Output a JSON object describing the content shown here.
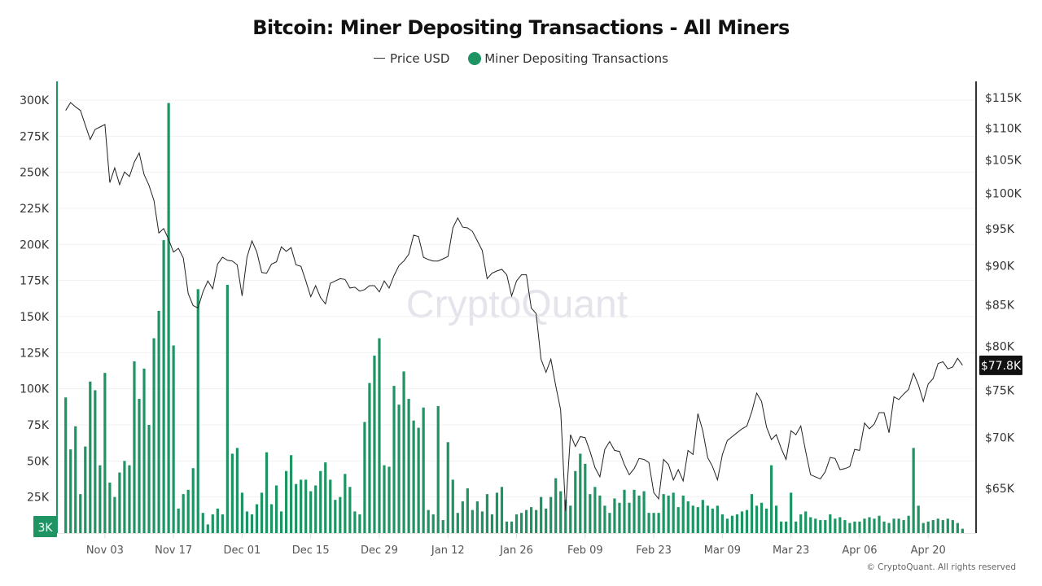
{
  "chart_data": {
    "type": "bar+line",
    "title": "Bitcoin: Miner Depositing Transactions - All Miners",
    "legend": {
      "placement": "top-center",
      "items": [
        "Price USD",
        "Miner Depositing Transactions"
      ]
    },
    "x": [
      "Oct 26",
      "Oct 27",
      "Oct 28",
      "Oct 29",
      "Oct 30",
      "Oct 31",
      "Nov 01",
      "Nov 02",
      "Nov 03",
      "Nov 04",
      "Nov 05",
      "Nov 06",
      "Nov 07",
      "Nov 08",
      "Nov 09",
      "Nov 10",
      "Nov 11",
      "Nov 12",
      "Nov 13",
      "Nov 14",
      "Nov 15",
      "Nov 16",
      "Nov 17",
      "Nov 18",
      "Nov 19",
      "Nov 20",
      "Nov 21",
      "Nov 22",
      "Nov 23",
      "Nov 24",
      "Nov 25",
      "Nov 26",
      "Nov 27",
      "Nov 28",
      "Nov 29",
      "Nov 30",
      "Dec 01",
      "Dec 02",
      "Dec 03",
      "Dec 04",
      "Dec 05",
      "Dec 06",
      "Dec 07",
      "Dec 08",
      "Dec 09",
      "Dec 10",
      "Dec 11",
      "Dec 12",
      "Dec 13",
      "Dec 14",
      "Dec 15",
      "Dec 16",
      "Dec 17",
      "Dec 18",
      "Dec 19",
      "Dec 20",
      "Dec 21",
      "Dec 22",
      "Dec 23",
      "Dec 24",
      "Dec 25",
      "Dec 26",
      "Dec 27",
      "Dec 28",
      "Dec 29",
      "Dec 30",
      "Dec 31",
      "Jan 01",
      "Jan 02",
      "Jan 03",
      "Jan 04",
      "Jan 05",
      "Jan 06",
      "Jan 07",
      "Jan 08",
      "Jan 09",
      "Jan 10",
      "Jan 11",
      "Jan 12",
      "Jan 13",
      "Jan 14",
      "Jan 15",
      "Jan 16",
      "Jan 17",
      "Jan 18",
      "Jan 19",
      "Jan 20",
      "Jan 21",
      "Jan 22",
      "Jan 23",
      "Jan 24",
      "Jan 25",
      "Jan 26",
      "Jan 27",
      "Jan 28",
      "Jan 29",
      "Jan 30",
      "Jan 31",
      "Feb 01",
      "Feb 02",
      "Feb 03",
      "Feb 04",
      "Feb 05",
      "Feb 06",
      "Feb 07",
      "Feb 08",
      "Feb 09",
      "Feb 10",
      "Feb 11",
      "Feb 12",
      "Feb 13",
      "Feb 14",
      "Feb 15",
      "Feb 16",
      "Feb 17",
      "Feb 18",
      "Feb 19",
      "Feb 20",
      "Feb 21",
      "Feb 22",
      "Feb 23",
      "Feb 24",
      "Feb 25",
      "Feb 26",
      "Feb 27",
      "Feb 28",
      "Mar 01",
      "Mar 02",
      "Mar 03",
      "Mar 04",
      "Mar 05",
      "Mar 06",
      "Mar 07",
      "Mar 08",
      "Mar 09",
      "Mar 10",
      "Mar 11",
      "Mar 12",
      "Mar 13",
      "Mar 14",
      "Mar 15",
      "Mar 16",
      "Mar 17",
      "Mar 18",
      "Mar 19",
      "Mar 20",
      "Mar 21",
      "Mar 22",
      "Mar 23",
      "Mar 24",
      "Mar 25",
      "Mar 26",
      "Mar 27",
      "Mar 28",
      "Mar 29",
      "Mar 30",
      "Mar 31",
      "Apr 01",
      "Apr 02",
      "Apr 03",
      "Apr 04",
      "Apr 05",
      "Apr 06",
      "Apr 07",
      "Apr 08",
      "Apr 09",
      "Apr 10",
      "Apr 11",
      "Apr 12",
      "Apr 13",
      "Apr 14",
      "Apr 15",
      "Apr 16",
      "Apr 17",
      "Apr 18",
      "Apr 19",
      "Apr 20",
      "Apr 21",
      "Apr 22",
      "Apr 23",
      "Apr 24",
      "Apr 25",
      "Apr 26",
      "Apr 27"
    ],
    "x_ticks": [
      "Nov 03",
      "Nov 17",
      "Dec 01",
      "Dec 15",
      "Dec 29",
      "Jan 12",
      "Jan 26",
      "Feb 09",
      "Feb 23",
      "Mar 09",
      "Mar 23",
      "Apr 06",
      "Apr 20"
    ],
    "series": [
      {
        "name": "Miner Depositing Transactions",
        "type": "bar",
        "axis": "left",
        "color": "#1f9463",
        "unit": "K",
        "values": [
          94,
          58,
          74,
          27,
          60,
          105,
          99,
          47,
          111,
          35,
          25,
          42,
          50,
          47,
          119,
          93,
          114,
          75,
          135,
          154,
          203,
          298,
          130,
          17,
          27,
          30,
          45,
          169,
          14,
          6,
          13,
          17,
          13,
          172,
          55,
          59,
          28,
          15,
          13,
          20,
          28,
          56,
          20,
          33,
          15,
          43,
          54,
          34,
          37,
          37,
          29,
          33,
          43,
          49,
          37,
          23,
          25,
          41,
          32,
          15,
          13,
          77,
          104,
          123,
          135,
          47,
          46,
          102,
          89,
          112,
          93,
          78,
          73,
          87,
          16,
          13,
          88,
          9,
          63,
          37,
          14,
          22,
          31,
          16,
          22,
          15,
          27,
          13,
          28,
          32,
          8,
          8,
          13,
          14,
          16,
          18,
          16,
          25,
          17,
          25,
          38,
          29,
          23,
          19,
          43,
          55,
          48,
          27,
          32,
          26,
          19,
          14,
          24,
          21,
          30,
          21,
          30,
          26,
          29,
          14,
          14,
          14,
          27,
          26,
          28,
          18,
          26,
          22,
          19,
          18,
          23,
          19,
          17,
          19,
          13,
          10,
          12,
          13,
          15,
          16,
          27,
          19,
          21,
          17,
          47,
          19,
          8,
          8,
          28,
          8,
          13,
          15,
          11,
          10,
          9,
          9,
          13,
          10,
          11,
          9,
          7,
          8,
          8,
          10,
          11,
          10,
          12,
          8,
          7,
          10,
          10,
          9,
          12,
          59,
          19,
          7,
          8,
          9,
          10,
          9,
          10,
          9,
          7,
          3
        ]
      },
      {
        "name": "Price USD",
        "type": "line",
        "axis": "right",
        "color": "#222222",
        "unit": "K USD",
        "values": [
          112.9,
          114.2,
          113.5,
          112.9,
          110.5,
          108.2,
          109.8,
          110.2,
          110.6,
          101.6,
          103.8,
          101.3,
          103.2,
          102.5,
          104.7,
          106.1,
          102.8,
          101.2,
          99.0,
          94.4,
          95.0,
          93.5,
          91.8,
          92.3,
          91.0,
          86.4,
          84.9,
          84.6,
          86.6,
          88,
          87,
          90.2,
          91.1,
          90.7,
          90.6,
          90.1,
          86.1,
          91.1,
          93.3,
          91.8,
          89.1,
          89,
          90.2,
          90.5,
          92.5,
          91.9,
          92.4,
          90.1,
          89.9,
          88,
          86,
          87.4,
          85.9,
          85.1,
          87.7,
          88,
          88.3,
          88.2,
          87.1,
          87.2,
          86.7,
          86.9,
          87.4,
          87.4,
          86.6,
          88,
          87.1,
          88.7,
          90,
          90.6,
          91.5,
          94.1,
          93.9,
          91.1,
          90.8,
          90.6,
          90.6,
          90.9,
          91.2,
          95.1,
          96.5,
          95.2,
          95.1,
          94.6,
          93.3,
          92,
          88.3,
          89,
          89.3,
          89.5,
          88.8,
          86.1,
          88,
          88.8,
          88.8,
          84.6,
          83.9,
          78.5,
          77.0,
          78.5,
          75.5,
          72.9,
          62.9,
          70.3,
          69.1,
          70.1,
          70.0,
          68.6,
          67.0,
          66.1,
          68.8,
          69.6,
          68.7,
          68.6,
          67.3,
          66.3,
          66.9,
          67.9,
          67.8,
          67.5,
          64.6,
          64.0,
          67.8,
          67.3,
          65.8,
          66.8,
          65.7,
          68.7,
          68.3,
          72.5,
          70.7,
          68.0,
          67.1,
          65.8,
          68.3,
          69.7,
          70.1,
          70.5,
          70.9,
          71.2,
          72.7,
          74.7,
          73.8,
          71.1,
          69.8,
          70.3,
          68.9,
          67.8,
          70.7,
          70.3,
          71.2,
          68.6,
          66.3,
          66.1,
          65.9,
          66.6,
          68,
          67.9,
          66.8,
          66.9,
          67.1,
          68.8,
          68.7,
          71.5,
          70.9,
          71.4,
          72.6,
          72.6,
          70.5,
          74.3,
          74,
          74.6,
          75.1,
          76.9,
          75.6,
          73.8,
          75.7,
          76.3,
          78,
          78.2,
          77.4,
          77.6,
          78.6,
          77.8
        ]
      }
    ],
    "left_axis": {
      "scale": "linear",
      "ylim": [
        0,
        300
      ],
      "ticks": [
        "25K",
        "50K",
        "75K",
        "100K",
        "125K",
        "150K",
        "175K",
        "200K",
        "225K",
        "250K",
        "275K",
        "300K"
      ],
      "tick_values": [
        25,
        50,
        75,
        100,
        125,
        150,
        175,
        200,
        225,
        250,
        275,
        300
      ],
      "current_label": "3K",
      "color": "#1f9463"
    },
    "right_axis": {
      "scale": "log",
      "ticks": [
        "$65K",
        "$70K",
        "$75K",
        "$80K",
        "$85K",
        "$90K",
        "$95K",
        "$100K",
        "$105K",
        "$110K",
        "$115K"
      ],
      "tick_values": [
        65,
        70,
        75,
        80,
        85,
        90,
        95,
        100,
        105,
        110,
        115
      ],
      "current_label": "$77.8K"
    },
    "grid": true,
    "watermark": "CryptoQuant"
  },
  "footer": "© CryptoQuant. All rights reserved"
}
